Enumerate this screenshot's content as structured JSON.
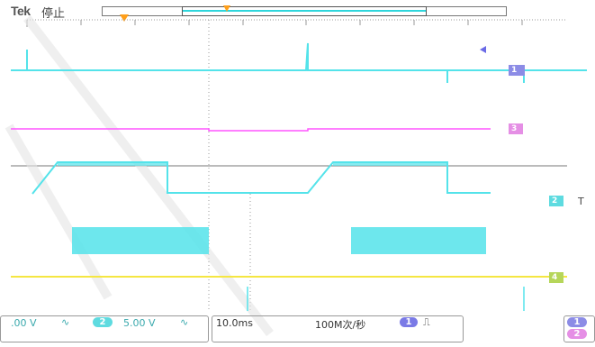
{
  "brand": "Tek",
  "acq_status": "停止",
  "colors": {
    "ch1": "#54e3ea",
    "ch2": "#5edbe0",
    "ch3": "#ff55ff",
    "ch4": "#f5e642",
    "trigger": "#ff9f1a",
    "grid": "#9a9a9a",
    "ch1_tag": "#8c8ce6",
    "ch3_tag": "#e58fe5",
    "ch4_tag": "#b6d65a"
  },
  "channel_tags": {
    "ch1": "1",
    "ch2": "2",
    "ch3": "3",
    "ch4": "4"
  },
  "readout": {
    "ch1_scale": ".00 V",
    "ch2_label": "2",
    "ch2_scale": "5.00 V",
    "bw_icon": "bandwidth-limit-icon",
    "timebase": "10.0ms",
    "sample_rate": "100M次/秒",
    "trig_source": "1",
    "trig_slope": "rising-edge-icon",
    "right_tag_1": "1",
    "right_tag_2": "2",
    "ch2_tag_text": "Τ"
  }
}
